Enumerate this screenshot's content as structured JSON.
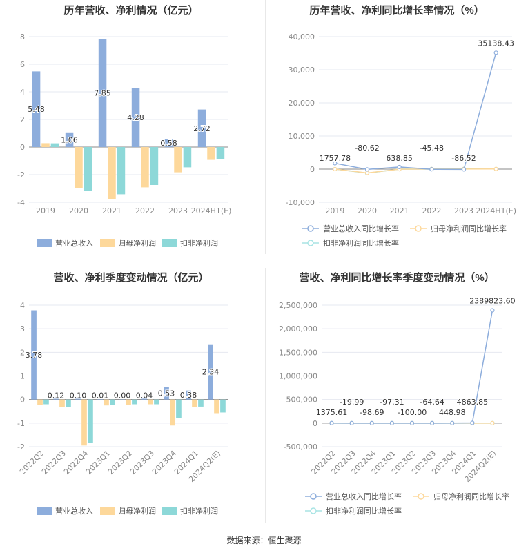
{
  "footer": "数据来源：恒生聚源",
  "colors": {
    "revenue": "#8daddc",
    "net": "#fdd89b",
    "deducted": "#8dd8d8",
    "grid": "#e6e8f0"
  },
  "chart_data": [
    {
      "type": "bar",
      "title": "历年营收、净利情况（亿元）",
      "categories": [
        "2019",
        "2020",
        "2021",
        "2022",
        "2023",
        "2024H1(E)"
      ],
      "ylim": [
        -4,
        8
      ],
      "yticks": [
        -4,
        -2,
        0,
        2,
        4,
        6,
        8
      ],
      "grid": true,
      "legend": "bottom",
      "series": [
        {
          "name": "营业总收入",
          "values": [
            5.48,
            1.06,
            7.85,
            4.28,
            0.58,
            2.72
          ],
          "labels": true
        },
        {
          "name": "归母净利润",
          "values": [
            0.28,
            -2.98,
            -3.75,
            -2.92,
            -1.83,
            -0.93
          ]
        },
        {
          "name": "扣非净利润",
          "values": [
            0.27,
            -3.18,
            -3.42,
            -2.75,
            -1.47,
            -0.88
          ]
        }
      ]
    },
    {
      "type": "line",
      "title": "历年营收、净利同比增长率情况（%）",
      "categories": [
        "2019",
        "2020",
        "2021",
        "2022",
        "2023",
        "2024H1(E)"
      ],
      "ylim": [
        -10000,
        40000
      ],
      "yticks": [
        -10000,
        0,
        10000,
        20000,
        30000,
        40000
      ],
      "grid": true,
      "legend": "bottom",
      "series": [
        {
          "name": "营业总收入同比增长率",
          "values": [
            1757.78,
            -80.62,
            638.85,
            -45.48,
            -86.52,
            35138.43
          ],
          "labels": [
            "1757.78",
            "-80.62",
            "638.85",
            "-45.48",
            "-86.52",
            "35138.43"
          ]
        },
        {
          "name": "归母净利润同比增长率",
          "values": [
            0,
            -1150,
            -25,
            22,
            37,
            49
          ]
        },
        {
          "name": "扣非净利润同比增长率",
          "values": [
            0,
            -1200,
            -8,
            20,
            47,
            40
          ]
        }
      ]
    },
    {
      "type": "bar",
      "title": "营收、净利季度变动情况（亿元）",
      "categories": [
        "2022Q2",
        "2022Q3",
        "2022Q4",
        "2023Q1",
        "2023Q2",
        "2023Q3",
        "2023Q4",
        "2024Q1",
        "2024Q2(E)"
      ],
      "ylim": [
        -2,
        4
      ],
      "yticks": [
        -2,
        -1,
        0,
        1,
        2,
        3,
        4
      ],
      "grid": true,
      "legend": "bottom",
      "series": [
        {
          "name": "营业总收入",
          "values": [
            3.78,
            0.12,
            0.1,
            0.01,
            0.0,
            0.04,
            0.53,
            0.38,
            2.34
          ],
          "labels": true
        },
        {
          "name": "归母净利润",
          "values": [
            -0.22,
            -0.32,
            -1.95,
            -0.25,
            -0.22,
            -0.2,
            -1.1,
            -0.32,
            -0.58
          ]
        },
        {
          "name": "扣非净利润",
          "values": [
            -0.2,
            -0.33,
            -1.84,
            -0.23,
            -0.2,
            -0.2,
            -0.8,
            -0.3,
            -0.55
          ]
        }
      ]
    },
    {
      "type": "line",
      "title": "营收、净利同比增长率季度变动情况（%）",
      "categories": [
        "2022Q2",
        "2022Q3",
        "2022Q4",
        "2023Q1",
        "2023Q2",
        "2023Q3",
        "2023Q4",
        "2024Q1",
        "2024Q2(E)"
      ],
      "ylim": [
        -500000,
        2500000
      ],
      "yticks": [
        -500000,
        0,
        500000,
        1000000,
        1500000,
        2000000,
        2500000
      ],
      "grid": true,
      "legend": "bottom",
      "series": [
        {
          "name": "营业总收入同比增长率",
          "values": [
            1375.61,
            -19.99,
            -98.69,
            -97.31,
            -100.0,
            -64.64,
            448.98,
            4863.85,
            2389823.6
          ],
          "labels": [
            "1375.61",
            "-19.99",
            "-98.69",
            "-97.31",
            "-100.00",
            "-64.64",
            "448.98",
            "4863.85",
            "2389823.60"
          ]
        },
        {
          "name": "归母净利润同比增长率",
          "values": [
            0,
            0,
            0,
            0,
            0,
            0,
            0,
            0,
            0
          ]
        },
        {
          "name": "扣非净利润同比增长率",
          "values": [
            0,
            0,
            0,
            0,
            0,
            0,
            0,
            0,
            0
          ]
        }
      ]
    }
  ]
}
